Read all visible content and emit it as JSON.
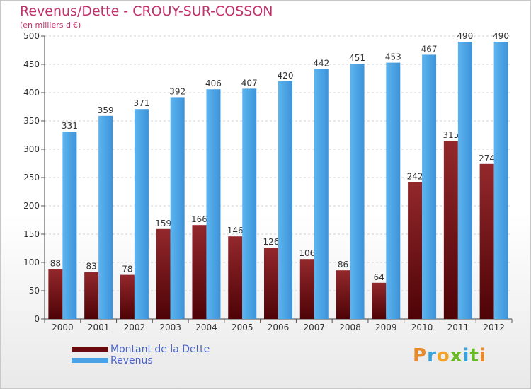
{
  "header": {
    "title": "Revenus/Dette - CROUY-SUR-COSSON",
    "subtitle": "(en milliers d'€)"
  },
  "legend": [
    {
      "label": "Montant de la Dette",
      "color": "#6b0a0e"
    },
    {
      "label": "Revenus",
      "color": "#4aa3e6"
    }
  ],
  "logo": "Proxiti",
  "chart_data": {
    "type": "bar",
    "categories": [
      "2000",
      "2001",
      "2002",
      "2003",
      "2004",
      "2005",
      "2006",
      "2007",
      "2008",
      "2009",
      "2010",
      "2011",
      "2012"
    ],
    "series": [
      {
        "name": "Montant de la Dette",
        "color": "#7a1418",
        "values": [
          88,
          83,
          78,
          159,
          166,
          146,
          126,
          106,
          86,
          64,
          242,
          315,
          274
        ]
      },
      {
        "name": "Revenus",
        "color": "#4aa3e6",
        "values": [
          331,
          359,
          371,
          392,
          406,
          407,
          420,
          442,
          451,
          453,
          467,
          490,
          490
        ]
      }
    ],
    "title": "Revenus/Dette - CROUY-SUR-COSSON",
    "ylabel": "(en milliers d'€)",
    "ylim": [
      0,
      500
    ],
    "yticks": [
      0,
      50,
      100,
      150,
      200,
      250,
      300,
      350,
      400,
      450,
      500
    ],
    "grid": true,
    "legend_position": "bottom-left"
  }
}
